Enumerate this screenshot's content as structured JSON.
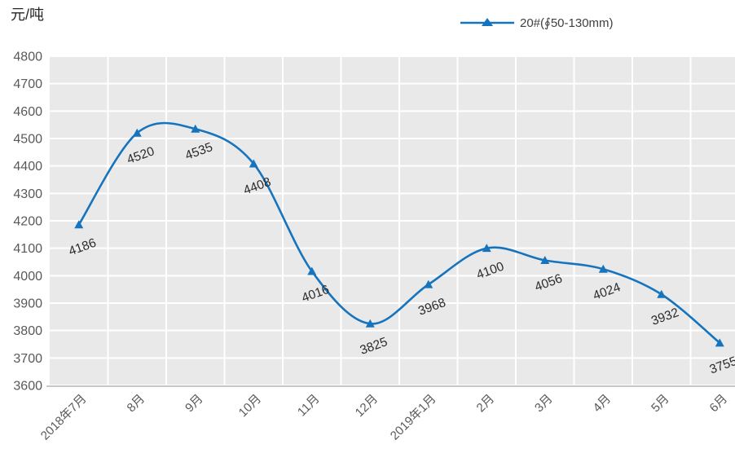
{
  "chart": {
    "unit_label": "元/吨",
    "legend": {
      "label": "20#(∮50-130mm)"
    }
  },
  "chart_data": {
    "type": "line",
    "smooth": true,
    "marker": "triangle",
    "title": "",
    "ylabel": "元/吨",
    "xlabel": "",
    "categories": [
      "2018年7月",
      "8月",
      "9月",
      "10月",
      "11月",
      "12月",
      "2019年1月",
      "2月",
      "3月",
      "4月",
      "5月",
      "6月"
    ],
    "series": [
      {
        "name": "20#(∮50-130mm)",
        "values": [
          4186,
          4520,
          4535,
          4408,
          4016,
          3825,
          3968,
          4100,
          4056,
          4024,
          3932,
          3755
        ]
      }
    ],
    "ylim": [
      3600,
      4800
    ],
    "ytick_step": 100,
    "grid": "horizontal and vertical white gridlines on gray plot background",
    "legend_position": "top",
    "data_labels": "shown below each point, rotated",
    "x_tick_rotation_deg": -45,
    "data_label_rotation_deg": -20
  },
  "colors": {
    "series_line": "#1674BE",
    "marker_fill": "#1674BE",
    "plot_background": "#e9e9e9",
    "gridline": "#ffffff",
    "axis_line": "#a6a6a6",
    "axis_text": "#595959",
    "data_label_text": "#2b2b2b",
    "title_text": "#262626",
    "legend_text": "#404040"
  }
}
